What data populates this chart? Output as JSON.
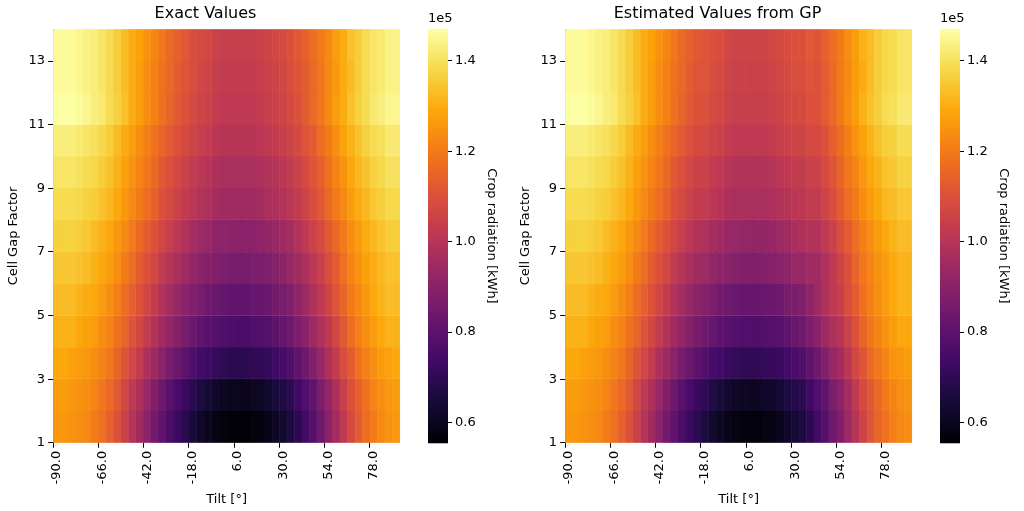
{
  "chart_data": [
    {
      "type": "heatmap",
      "title": "Exact Values",
      "xlabel": "Tilt [°]",
      "ylabel": "Cell Gap Factor",
      "clabel": "Crop radiation [kWh]",
      "annotations": [
        "1e5"
      ],
      "categories": [
        "-90.0",
        null,
        null,
        null,
        null,
        null,
        "-66.0",
        null,
        null,
        null,
        null,
        null,
        "-42.0",
        null,
        null,
        null,
        null,
        null,
        "-18.0",
        null,
        null,
        null,
        null,
        null,
        "6.0",
        null,
        null,
        null,
        null,
        null,
        "30.0",
        null,
        null,
        null,
        null,
        null,
        "54.0",
        null,
        null,
        null,
        null,
        null,
        "78.0",
        null,
        null,
        null
      ],
      "ylim": [
        1,
        14
      ],
      "yticks": [
        1,
        3,
        5,
        7,
        9,
        11,
        13
      ],
      "clim": [
        0.555,
        1.47
      ],
      "cticks": [
        0.6,
        0.8,
        {
          "value": 1,
          "label": "1.0"
        },
        1.2,
        1.4
      ],
      "cells": [
        [
          1.46,
          1.46,
          1.46,
          1.45,
          1.44,
          1.43,
          1.41,
          1.39,
          1.36,
          1.33,
          1.3,
          1.28,
          1.25,
          1.22,
          1.19,
          1.16,
          1.14,
          1.12,
          1.09,
          1.08,
          1.07,
          1.05,
          1.04,
          1.04,
          1.04,
          1.04,
          1.04,
          1.05,
          1.06,
          1.07,
          1.08,
          1.1,
          1.12,
          1.14,
          1.17,
          1.2,
          1.23,
          1.27,
          1.3,
          1.34,
          1.36,
          1.39,
          1.41,
          1.42,
          1.44,
          1.44
        ],
        [
          1.46,
          1.46,
          1.46,
          1.45,
          1.44,
          1.43,
          1.41,
          1.39,
          1.36,
          1.33,
          1.3,
          1.27,
          1.24,
          1.21,
          1.18,
          1.16,
          1.13,
          1.11,
          1.09,
          1.07,
          1.06,
          1.04,
          1.03,
          1.03,
          1.03,
          1.03,
          1.03,
          1.04,
          1.05,
          1.06,
          1.07,
          1.09,
          1.11,
          1.13,
          1.16,
          1.19,
          1.23,
          1.26,
          1.3,
          1.33,
          1.36,
          1.39,
          1.41,
          1.42,
          1.44,
          1.44
        ],
        [
          1.47,
          1.47,
          1.47,
          1.46,
          1.45,
          1.43,
          1.42,
          1.39,
          1.37,
          1.34,
          1.3,
          1.27,
          1.24,
          1.21,
          1.18,
          1.15,
          1.12,
          1.1,
          1.08,
          1.06,
          1.05,
          1.03,
          1.02,
          1.02,
          1.02,
          1.02,
          1.02,
          1.03,
          1.04,
          1.05,
          1.06,
          1.08,
          1.1,
          1.13,
          1.16,
          1.19,
          1.23,
          1.27,
          1.3,
          1.34,
          1.37,
          1.39,
          1.42,
          1.43,
          1.45,
          1.45
        ],
        [
          1.43,
          1.43,
          1.43,
          1.42,
          1.41,
          1.4,
          1.38,
          1.36,
          1.33,
          1.3,
          1.27,
          1.24,
          1.21,
          1.18,
          1.15,
          1.13,
          1.1,
          1.08,
          1.06,
          1.04,
          1.03,
          1.01,
          1.0,
          1.0,
          1.0,
          1.0,
          1.0,
          1.01,
          1.02,
          1.03,
          1.04,
          1.06,
          1.08,
          1.11,
          1.13,
          1.17,
          1.2,
          1.24,
          1.28,
          1.31,
          1.34,
          1.37,
          1.39,
          1.4,
          1.42,
          1.42
        ],
        [
          1.41,
          1.41,
          1.41,
          1.4,
          1.39,
          1.38,
          1.36,
          1.34,
          1.31,
          1.28,
          1.25,
          1.22,
          1.19,
          1.16,
          1.12,
          1.1,
          1.07,
          1.05,
          1.03,
          1.01,
          1.0,
          0.98,
          0.97,
          0.97,
          0.97,
          0.97,
          0.97,
          0.98,
          0.99,
          1.0,
          1.01,
          1.03,
          1.05,
          1.08,
          1.11,
          1.14,
          1.18,
          1.22,
          1.25,
          1.29,
          1.32,
          1.34,
          1.37,
          1.38,
          1.4,
          1.4
        ],
        [
          1.39,
          1.39,
          1.39,
          1.38,
          1.37,
          1.36,
          1.34,
          1.32,
          1.29,
          1.26,
          1.23,
          1.2,
          1.17,
          1.14,
          1.1,
          1.08,
          1.05,
          1.03,
          1.01,
          0.99,
          0.98,
          0.96,
          0.95,
          0.95,
          0.95,
          0.95,
          0.95,
          0.96,
          0.97,
          0.98,
          0.99,
          1.01,
          1.03,
          1.06,
          1.09,
          1.12,
          1.16,
          1.2,
          1.23,
          1.27,
          1.3,
          1.32,
          1.35,
          1.36,
          1.38,
          1.38
        ],
        [
          1.37,
          1.37,
          1.37,
          1.36,
          1.35,
          1.33,
          1.31,
          1.29,
          1.26,
          1.23,
          1.2,
          1.16,
          1.13,
          1.1,
          1.07,
          1.04,
          1.01,
          0.99,
          0.96,
          0.94,
          0.93,
          0.91,
          0.91,
          0.9,
          0.9,
          0.9,
          0.9,
          0.91,
          0.92,
          0.93,
          0.95,
          0.96,
          0.99,
          1.02,
          1.05,
          1.08,
          1.12,
          1.16,
          1.2,
          1.24,
          1.27,
          1.3,
          1.32,
          1.34,
          1.36,
          1.36
        ],
        [
          1.35,
          1.35,
          1.35,
          1.34,
          1.33,
          1.31,
          1.29,
          1.27,
          1.24,
          1.2,
          1.17,
          1.13,
          1.1,
          1.07,
          1.03,
          1.0,
          0.97,
          0.95,
          0.92,
          0.9,
          0.89,
          0.88,
          0.87,
          0.86,
          0.86,
          0.86,
          0.87,
          0.87,
          0.88,
          0.89,
          0.91,
          0.93,
          0.95,
          0.98,
          1.01,
          1.05,
          1.09,
          1.13,
          1.18,
          1.22,
          1.25,
          1.28,
          1.3,
          1.32,
          1.34,
          1.34
        ],
        [
          1.33,
          1.33,
          1.33,
          1.31,
          1.3,
          1.29,
          1.27,
          1.24,
          1.21,
          1.17,
          1.14,
          1.1,
          1.07,
          1.03,
          0.99,
          0.96,
          0.93,
          0.9,
          0.88,
          0.86,
          0.84,
          0.83,
          0.82,
          0.81,
          0.81,
          0.81,
          0.82,
          0.82,
          0.83,
          0.85,
          0.86,
          0.88,
          0.91,
          0.94,
          0.98,
          1.02,
          1.06,
          1.11,
          1.15,
          1.2,
          1.23,
          1.26,
          1.29,
          1.31,
          1.33,
          1.33
        ],
        [
          1.31,
          1.31,
          1.31,
          1.29,
          1.28,
          1.27,
          1.24,
          1.22,
          1.18,
          1.15,
          1.11,
          1.07,
          1.03,
          0.99,
          0.95,
          0.92,
          0.89,
          0.86,
          0.83,
          0.81,
          0.79,
          0.78,
          0.77,
          0.76,
          0.76,
          0.76,
          0.77,
          0.77,
          0.78,
          0.8,
          0.82,
          0.84,
          0.87,
          0.9,
          0.94,
          0.98,
          1.02,
          1.07,
          1.12,
          1.17,
          1.21,
          1.24,
          1.27,
          1.29,
          1.31,
          1.31
        ],
        [
          1.29,
          1.29,
          1.28,
          1.27,
          1.26,
          1.24,
          1.22,
          1.19,
          1.15,
          1.11,
          1.07,
          1.03,
          0.98,
          0.94,
          0.9,
          0.86,
          0.83,
          0.8,
          0.77,
          0.74,
          0.73,
          0.71,
          0.7,
          0.69,
          0.69,
          0.69,
          0.7,
          0.7,
          0.71,
          0.73,
          0.75,
          0.77,
          0.8,
          0.84,
          0.88,
          0.93,
          0.98,
          1.03,
          1.09,
          1.13,
          1.18,
          1.21,
          1.24,
          1.27,
          1.28,
          1.29
        ],
        [
          1.27,
          1.27,
          1.26,
          1.25,
          1.24,
          1.22,
          1.19,
          1.16,
          1.12,
          1.07,
          1.02,
          0.98,
          0.93,
          0.88,
          0.84,
          0.79,
          0.75,
          0.72,
          0.69,
          0.66,
          0.64,
          0.62,
          0.61,
          0.6,
          0.6,
          0.6,
          0.61,
          0.61,
          0.63,
          0.65,
          0.67,
          0.69,
          0.73,
          0.77,
          0.81,
          0.87,
          0.92,
          0.98,
          1.04,
          1.1,
          1.14,
          1.18,
          1.22,
          1.24,
          1.26,
          1.27
        ],
        [
          1.26,
          1.26,
          1.25,
          1.24,
          1.23,
          1.2,
          1.18,
          1.14,
          1.1,
          1.05,
          1.0,
          0.95,
          0.9,
          0.85,
          0.81,
          0.76,
          0.72,
          0.69,
          0.65,
          0.62,
          0.6,
          0.58,
          0.57,
          0.56,
          0.56,
          0.56,
          0.57,
          0.57,
          0.59,
          0.61,
          0.63,
          0.66,
          0.69,
          0.74,
          0.78,
          0.84,
          0.9,
          0.96,
          1.02,
          1.08,
          1.13,
          1.17,
          1.2,
          1.23,
          1.25,
          1.26
        ]
      ]
    },
    {
      "type": "heatmap",
      "title": "Estimated Values from GP",
      "xlabel": "Tilt [°]",
      "ylabel": "Cell Gap Factor",
      "clabel": "Crop radiation [kWh]",
      "annotations": [
        "1e5"
      ],
      "categories": [
        "-90.0",
        null,
        null,
        null,
        null,
        null,
        "-66.0",
        null,
        null,
        null,
        null,
        null,
        "-42.0",
        null,
        null,
        null,
        null,
        null,
        "-18.0",
        null,
        null,
        null,
        null,
        null,
        "6.0",
        null,
        null,
        null,
        null,
        null,
        "30.0",
        null,
        null,
        null,
        null,
        null,
        "54.0",
        null,
        null,
        null,
        null,
        null,
        "78.0",
        null,
        null,
        null
      ],
      "ylim": [
        1,
        14
      ],
      "yticks": [
        1,
        3,
        5,
        7,
        9,
        11,
        13
      ],
      "clim": [
        0.555,
        1.47
      ],
      "cticks": [
        0.6,
        0.8,
        {
          "value": 1,
          "label": "1.0"
        },
        1.2,
        1.4
      ],
      "cells": [
        [
          1.46,
          1.46,
          1.46,
          1.45,
          1.44,
          1.43,
          1.41,
          1.39,
          1.36,
          1.33,
          1.3,
          1.28,
          1.25,
          1.22,
          1.19,
          1.16,
          1.14,
          1.12,
          1.11,
          1.1,
          1.09,
          1.07,
          1.06,
          1.06,
          1.06,
          1.06,
          1.06,
          1.07,
          1.08,
          1.09,
          1.1,
          1.1,
          1.12,
          1.11,
          1.14,
          1.17,
          1.2,
          1.24,
          1.27,
          1.31,
          1.33,
          1.36,
          1.38,
          1.39,
          1.41,
          1.41
        ],
        [
          1.46,
          1.46,
          1.46,
          1.45,
          1.44,
          1.43,
          1.41,
          1.39,
          1.36,
          1.33,
          1.3,
          1.27,
          1.24,
          1.21,
          1.18,
          1.16,
          1.13,
          1.11,
          1.11,
          1.09,
          1.08,
          1.06,
          1.05,
          1.05,
          1.05,
          1.05,
          1.05,
          1.06,
          1.07,
          1.08,
          1.09,
          1.09,
          1.11,
          1.1,
          1.13,
          1.16,
          1.2,
          1.23,
          1.27,
          1.3,
          1.33,
          1.36,
          1.38,
          1.39,
          1.41,
          1.41
        ],
        [
          1.47,
          1.47,
          1.47,
          1.46,
          1.45,
          1.43,
          1.42,
          1.39,
          1.37,
          1.34,
          1.3,
          1.27,
          1.24,
          1.21,
          1.18,
          1.15,
          1.12,
          1.1,
          1.1,
          1.08,
          1.07,
          1.05,
          1.04,
          1.04,
          1.04,
          1.04,
          1.04,
          1.05,
          1.06,
          1.07,
          1.08,
          1.08,
          1.1,
          1.1,
          1.13,
          1.16,
          1.2,
          1.24,
          1.27,
          1.31,
          1.34,
          1.36,
          1.39,
          1.4,
          1.42,
          1.42
        ],
        [
          1.43,
          1.43,
          1.43,
          1.42,
          1.41,
          1.4,
          1.38,
          1.36,
          1.33,
          1.3,
          1.27,
          1.24,
          1.21,
          1.18,
          1.15,
          1.13,
          1.1,
          1.08,
          1.08,
          1.06,
          1.05,
          1.03,
          1.02,
          1.02,
          1.02,
          1.02,
          1.02,
          1.03,
          1.04,
          1.05,
          1.06,
          1.06,
          1.08,
          1.08,
          1.1,
          1.14,
          1.17,
          1.21,
          1.25,
          1.28,
          1.31,
          1.34,
          1.36,
          1.37,
          1.39,
          1.39
        ],
        [
          1.41,
          1.41,
          1.41,
          1.4,
          1.39,
          1.38,
          1.36,
          1.34,
          1.31,
          1.28,
          1.25,
          1.22,
          1.19,
          1.16,
          1.12,
          1.1,
          1.07,
          1.05,
          1.05,
          1.03,
          1.02,
          1.0,
          0.99,
          0.99,
          0.99,
          0.99,
          0.99,
          1.0,
          1.01,
          1.02,
          1.03,
          1.03,
          1.05,
          1.05,
          1.08,
          1.11,
          1.15,
          1.19,
          1.22,
          1.26,
          1.29,
          1.31,
          1.34,
          1.35,
          1.37,
          1.37
        ],
        [
          1.39,
          1.39,
          1.39,
          1.38,
          1.37,
          1.36,
          1.34,
          1.32,
          1.29,
          1.26,
          1.23,
          1.2,
          1.17,
          1.14,
          1.1,
          1.08,
          1.05,
          1.03,
          1.03,
          1.01,
          1.0,
          0.98,
          0.97,
          0.97,
          0.97,
          0.97,
          0.97,
          0.98,
          0.99,
          1.0,
          1.01,
          1.01,
          1.03,
          1.03,
          1.06,
          1.09,
          1.13,
          1.17,
          1.2,
          1.24,
          1.27,
          1.29,
          1.32,
          1.33,
          1.35,
          1.35
        ],
        [
          1.37,
          1.37,
          1.37,
          1.36,
          1.35,
          1.33,
          1.31,
          1.29,
          1.26,
          1.23,
          1.2,
          1.16,
          1.13,
          1.1,
          1.07,
          1.04,
          1.01,
          0.99,
          0.98,
          0.96,
          0.95,
          0.93,
          0.93,
          0.92,
          0.92,
          0.92,
          0.92,
          0.93,
          0.94,
          0.95,
          0.97,
          0.98,
          0.99,
          0.99,
          1.02,
          1.05,
          1.09,
          1.13,
          1.17,
          1.21,
          1.24,
          1.27,
          1.29,
          1.31,
          1.33,
          1.33
        ],
        [
          1.35,
          1.35,
          1.35,
          1.34,
          1.33,
          1.31,
          1.29,
          1.27,
          1.24,
          1.2,
          1.17,
          1.13,
          1.1,
          1.07,
          1.03,
          1.0,
          0.97,
          0.95,
          0.94,
          0.92,
          0.91,
          0.9,
          0.89,
          0.88,
          0.88,
          0.88,
          0.89,
          0.89,
          0.9,
          0.91,
          0.93,
          0.93,
          0.95,
          0.95,
          0.98,
          1.02,
          1.06,
          1.1,
          1.15,
          1.19,
          1.22,
          1.25,
          1.27,
          1.29,
          1.31,
          1.31
        ],
        [
          1.33,
          1.33,
          1.33,
          1.31,
          1.3,
          1.29,
          1.27,
          1.24,
          1.21,
          1.17,
          1.14,
          1.1,
          1.07,
          1.03,
          0.99,
          0.96,
          0.93,
          0.9,
          0.89,
          0.87,
          0.85,
          0.84,
          0.83,
          0.82,
          0.82,
          0.82,
          0.83,
          0.83,
          0.84,
          0.86,
          0.87,
          0.88,
          0.91,
          0.94,
          0.98,
          1.02,
          1.04,
          1.09,
          1.13,
          1.18,
          1.21,
          1.24,
          1.27,
          1.29,
          1.31,
          1.31
        ],
        [
          1.31,
          1.31,
          1.31,
          1.29,
          1.28,
          1.27,
          1.24,
          1.22,
          1.18,
          1.15,
          1.11,
          1.07,
          1.03,
          0.99,
          0.95,
          0.92,
          0.89,
          0.86,
          0.84,
          0.82,
          0.8,
          0.79,
          0.78,
          0.77,
          0.77,
          0.77,
          0.78,
          0.78,
          0.79,
          0.81,
          0.83,
          0.84,
          0.87,
          0.9,
          0.94,
          0.98,
          1.0,
          1.05,
          1.1,
          1.15,
          1.19,
          1.22,
          1.25,
          1.27,
          1.29,
          1.29
        ],
        [
          1.29,
          1.29,
          1.28,
          1.27,
          1.26,
          1.24,
          1.22,
          1.19,
          1.15,
          1.11,
          1.07,
          1.03,
          0.98,
          0.94,
          0.9,
          0.86,
          0.83,
          0.8,
          0.78,
          0.75,
          0.74,
          0.72,
          0.71,
          0.7,
          0.7,
          0.7,
          0.71,
          0.71,
          0.72,
          0.74,
          0.76,
          0.77,
          0.8,
          0.84,
          0.88,
          0.93,
          0.96,
          1.01,
          1.07,
          1.11,
          1.16,
          1.19,
          1.22,
          1.25,
          1.26,
          1.27
        ],
        [
          1.27,
          1.27,
          1.26,
          1.25,
          1.24,
          1.22,
          1.19,
          1.16,
          1.12,
          1.07,
          1.02,
          0.98,
          0.93,
          0.88,
          0.84,
          0.79,
          0.75,
          0.72,
          0.7,
          0.67,
          0.65,
          0.63,
          0.62,
          0.61,
          0.61,
          0.61,
          0.62,
          0.62,
          0.64,
          0.66,
          0.68,
          0.69,
          0.73,
          0.77,
          0.81,
          0.87,
          0.9,
          0.96,
          1.02,
          1.08,
          1.12,
          1.16,
          1.2,
          1.22,
          1.24,
          1.25
        ],
        [
          1.26,
          1.26,
          1.25,
          1.24,
          1.23,
          1.2,
          1.18,
          1.14,
          1.1,
          1.05,
          1.0,
          0.95,
          0.9,
          0.85,
          0.81,
          0.76,
          0.72,
          0.69,
          0.66,
          0.63,
          0.61,
          0.59,
          0.58,
          0.57,
          0.57,
          0.57,
          0.58,
          0.58,
          0.6,
          0.62,
          0.64,
          0.66,
          0.69,
          0.74,
          0.78,
          0.84,
          0.88,
          0.94,
          1.0,
          1.06,
          1.11,
          1.15,
          1.18,
          1.21,
          1.23,
          1.24
        ]
      ]
    }
  ]
}
